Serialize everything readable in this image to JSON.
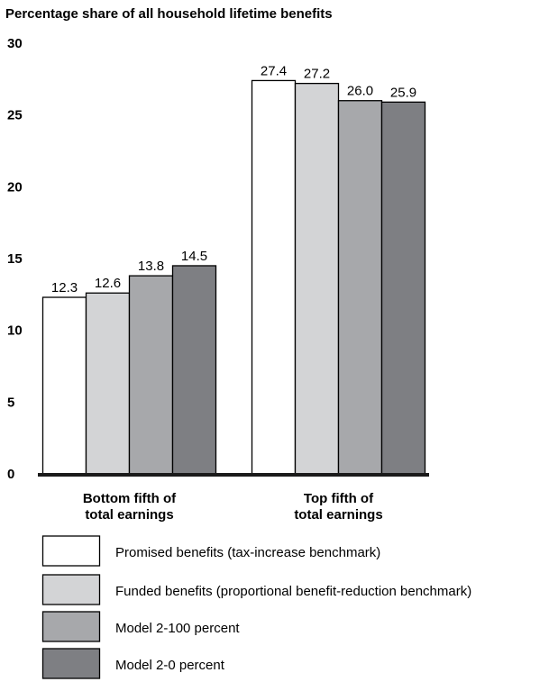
{
  "chart_data": {
    "type": "bar",
    "title": "Percentage share of all household lifetime benefits",
    "xlabel": "",
    "ylabel": "",
    "ylim": [
      0,
      30
    ],
    "yticks": [
      0,
      5,
      10,
      15,
      20,
      25,
      30
    ],
    "categories": [
      [
        "Bottom fifth of",
        "total earnings"
      ],
      [
        "Top fifth of",
        "total earnings"
      ]
    ],
    "series": [
      {
        "name": "Promised benefits (tax-increase benchmark)",
        "values": [
          12.3,
          27.4
        ],
        "labels": [
          "12.3",
          "27.4"
        ],
        "color": "#ffffff"
      },
      {
        "name": "Funded benefits (proportional benefit-reduction benchmark)",
        "values": [
          12.6,
          27.2
        ],
        "labels": [
          "12.6",
          "27.2"
        ],
        "color": "#d3d4d6"
      },
      {
        "name": "Model 2-100 percent",
        "values": [
          13.8,
          26.0
        ],
        "labels": [
          "13.8",
          "26.0"
        ],
        "color": "#a7a8ab"
      },
      {
        "name": "Model 2-0 percent",
        "values": [
          14.5,
          25.9
        ],
        "labels": [
          "14.5",
          "25.9"
        ],
        "color": "#7e7f83"
      }
    ],
    "grid": false,
    "legend_position": "bottom"
  }
}
